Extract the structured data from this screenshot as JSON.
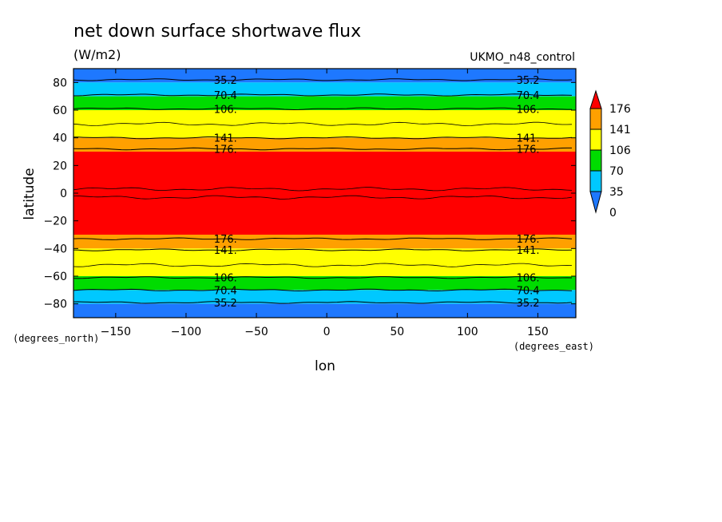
{
  "chart_data": {
    "type": "heatmap",
    "subtype": "filled-contour",
    "title": "net down surface shortwave flux",
    "units": "(W/m2)",
    "dataset": "UKMO_n48_control",
    "xlabel": "lon",
    "ylabel": "latitude",
    "x_unit_label": "(degrees_east)",
    "y_unit_label": "(degrees_north)",
    "xlim": [
      -180,
      177
    ],
    "ylim": [
      -90,
      90
    ],
    "x_ticks": [
      -150,
      -100,
      -50,
      0,
      50,
      100,
      150
    ],
    "x_tick_labels": [
      "−150",
      "−100",
      "−50",
      "0",
      "50",
      "100",
      "150"
    ],
    "y_ticks": [
      -80,
      -60,
      -40,
      -20,
      0,
      20,
      40,
      60,
      80
    ],
    "y_tick_labels": [
      "−80",
      "−60",
      "−40",
      "−20",
      "0",
      "20",
      "40",
      "60",
      "80"
    ],
    "colorbar": {
      "levels": [
        0,
        35,
        70,
        106,
        141,
        176
      ],
      "labels": [
        "0",
        "35",
        "70",
        "106",
        "141",
        "176"
      ],
      "colors": [
        "#1e78ff",
        "#00c8ff",
        "#00dc00",
        "#ffff00",
        "#ffa000",
        "#ff0000"
      ],
      "band_colors": {
        "0-35": "#1e78ff",
        "35-70": "#00c8ff",
        "70-106": "#00dc00",
        "106-141": "#ffff00",
        "141-176": "#ffa000",
        "176+": "#ff0000"
      },
      "extend": "both"
    },
    "bands": [
      {
        "lat_min": 80,
        "lat_max": 90,
        "color": "#1e78ff"
      },
      {
        "lat_min": 70,
        "lat_max": 80,
        "color": "#00c8ff"
      },
      {
        "lat_min": 60,
        "lat_max": 70,
        "color": "#00dc00"
      },
      {
        "lat_min": 40,
        "lat_max": 60,
        "color": "#ffff00"
      },
      {
        "lat_min": 30,
        "lat_max": 40,
        "color": "#ffa000"
      },
      {
        "lat_min": -30,
        "lat_max": 30,
        "color": "#ff0000"
      },
      {
        "lat_min": -40,
        "lat_max": -30,
        "color": "#ffa000"
      },
      {
        "lat_min": -60,
        "lat_max": -40,
        "color": "#ffff00"
      },
      {
        "lat_min": -70,
        "lat_max": -60,
        "color": "#00dc00"
      },
      {
        "lat_min": -80,
        "lat_max": -70,
        "color": "#00c8ff"
      },
      {
        "lat_min": -90,
        "lat_max": -80,
        "color": "#1e78ff"
      }
    ],
    "contours": [
      {
        "lat": 82,
        "label": "35.2"
      },
      {
        "lat": 71,
        "label": "70.4"
      },
      {
        "lat": 61,
        "label": "106."
      },
      {
        "lat": 40,
        "label": "141."
      },
      {
        "lat": 32,
        "label": "176."
      },
      {
        "lat": -33,
        "label": "176."
      },
      {
        "lat": -41,
        "label": "141."
      },
      {
        "lat": -61,
        "label": "106."
      },
      {
        "lat": -70,
        "label": "70.4"
      },
      {
        "lat": -79,
        "label": "35.2"
      }
    ],
    "contour_label_lons": [
      -72,
      143
    ],
    "extra_contour_lats": [
      50,
      -52,
      3,
      -3
    ],
    "grid": false
  }
}
